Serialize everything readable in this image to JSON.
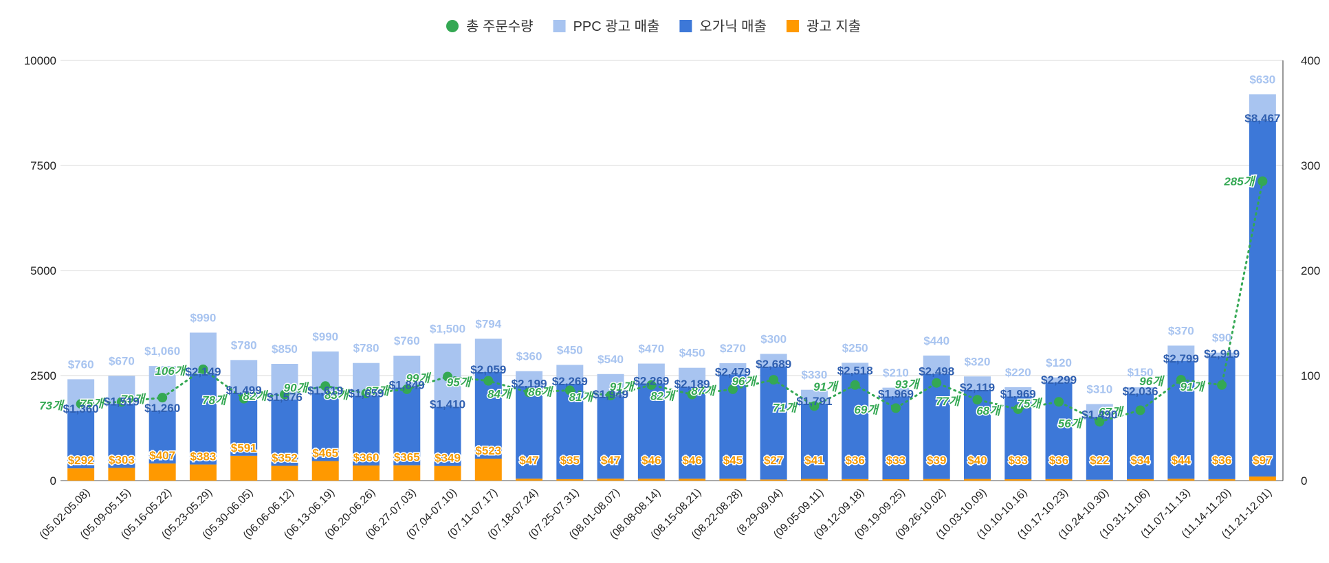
{
  "colors": {
    "orders": "#34a853",
    "ppc": "#a8c4f0",
    "organic": "#3d78d8",
    "ad": "#ff9900",
    "grid": "#d9d9d9"
  },
  "chart_data": {
    "type": "bar",
    "stacked": true,
    "grid": true,
    "legend_position": "top",
    "categories": [
      "(05.02-05.08)",
      "(05.09-05.15)",
      "(05.16-05.22)",
      "(05.23-05.29)",
      "(05.30-06.05)",
      "(06.06-06.12)",
      "(06.13-06.19)",
      "(06.20-06.26)",
      "(06.27-07.03)",
      "(07.04-07.10)",
      "(07.11-07.17)",
      "(07.18-07.24)",
      "(07.25-07.31)",
      "(08.01-08.07)",
      "(08.08-08.14)",
      "(08.15-08.21)",
      "(08.22-08.28)",
      "(8.29-09.04)",
      "(09.05-09.11)",
      "(09.12-09.18)",
      "(09.19-09.25)",
      "(09.26-10.02)",
      "(10.03-10.09)",
      "(10.10-10.16)",
      "(10.17-10.23)",
      "(10.24-10.30)",
      "(10.31-11.06)",
      "(11.07-11.13)",
      "(11.14-11.20)",
      "(11.21-12.01)"
    ],
    "y_left": {
      "min": 0,
      "max": 10000,
      "ticks": [
        "0",
        "2500",
        "5000",
        "7500",
        "10000"
      ]
    },
    "y_right": {
      "min": 0,
      "max": 400,
      "ticks": [
        "0",
        "100",
        "200",
        "300",
        "400"
      ]
    },
    "series": [
      {
        "name": "광고 지출",
        "kind": "bar",
        "axis": "left",
        "values": [
          292,
          303,
          407,
          383,
          591,
          352,
          465,
          360,
          365,
          349,
          523,
          47,
          35,
          47,
          46,
          46,
          45,
          27,
          41,
          36,
          33,
          39,
          40,
          33,
          36,
          22,
          34,
          44,
          36,
          97
        ],
        "labels": [
          "$292",
          "$303",
          "$407",
          "$383",
          "$591",
          "$352",
          "$465",
          "$360",
          "$365",
          "$349",
          "$523",
          "$47",
          "$35",
          "$47",
          "$46",
          "$46",
          "$45",
          "$27",
          "$41",
          "$36",
          "$33",
          "$39",
          "$40",
          "$33",
          "$36",
          "$22",
          "$34",
          "$44",
          "$36",
          "$97"
        ]
      },
      {
        "name": "오가닉 매출",
        "kind": "bar",
        "axis": "left",
        "values": [
          1360,
          1519,
          1260,
          2149,
          1499,
          1576,
          1619,
          1659,
          1849,
          1410,
          2059,
          2199,
          2269,
          1949,
          2269,
          2189,
          2479,
          2689,
          1791,
          2518,
          1969,
          2498,
          2119,
          1969,
          2299,
          1490,
          2036,
          2799,
          2919,
          8467
        ],
        "labels": [
          "$1,360",
          "$1,519",
          "$1,260",
          "$2,149",
          "$1,499",
          "$1,576",
          "$1,619",
          "$1,659",
          "$1,849",
          "$1,410",
          "$2,059",
          "$2,199",
          "$2,269",
          "$1,949",
          "$2,269",
          "$2,189",
          "$2,479",
          "$2,689",
          "$1,791",
          "$2,518",
          "$1,969",
          "$2,498",
          "$2,119",
          "$1,969",
          "$2,299",
          "$1,490",
          "$2,036",
          "$2,799",
          "$2,919",
          "$8,467"
        ]
      },
      {
        "name": "PPC 광고 매출",
        "kind": "bar",
        "axis": "left",
        "values": [
          760,
          670,
          1060,
          990,
          780,
          850,
          990,
          780,
          760,
          1500,
          794,
          360,
          450,
          540,
          470,
          450,
          270,
          300,
          330,
          250,
          210,
          440,
          320,
          220,
          120,
          310,
          150,
          370,
          90,
          630
        ],
        "labels": [
          "$760",
          "$670",
          "$1,060",
          "$990",
          "$780",
          "$850",
          "$990",
          "$780",
          "$760",
          "$1,500",
          "$794",
          "$360",
          "$450",
          "$540",
          "$470",
          "$450",
          "$270",
          "$300",
          "$330",
          "$250",
          "$210",
          "$440",
          "$320",
          "$220",
          "$120",
          "$310",
          "$150",
          "$370",
          "$90",
          "$630"
        ]
      },
      {
        "name": "총 주문수량",
        "kind": "line",
        "axis": "right",
        "values": [
          73,
          75,
          79,
          106,
          78,
          82,
          90,
          83,
          87,
          99,
          95,
          84,
          86,
          81,
          91,
          82,
          87,
          96,
          71,
          91,
          69,
          93,
          77,
          68,
          75,
          56,
          67,
          96,
          91,
          285
        ],
        "labels": [
          "73개",
          "75개",
          "79개",
          "106개",
          "78개",
          "82개",
          "90개",
          "83개",
          "87개",
          "99개",
          "95개",
          "84개",
          "86개",
          "81개",
          "91개",
          "82개",
          "87개",
          "96개",
          "71개",
          "91개",
          "69개",
          "93개",
          "77개",
          "68개",
          "75개",
          "56개",
          "67개",
          "96개",
          "91개",
          "285개"
        ]
      }
    ]
  }
}
